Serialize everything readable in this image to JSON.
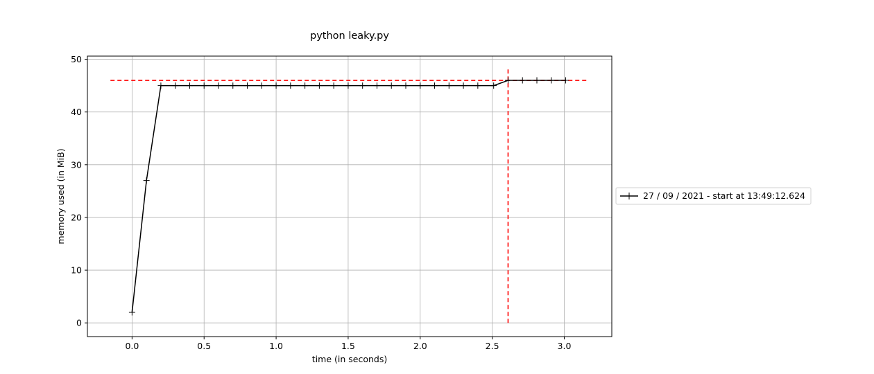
{
  "chart_data": {
    "type": "line",
    "title": "python leaky.py",
    "xlabel": "time (in seconds)",
    "ylabel": "memory used (in MiB)",
    "xlim": [
      -0.31,
      3.33
    ],
    "ylim": [
      -2.6,
      50.6
    ],
    "xticks": [
      0.0,
      0.5,
      1.0,
      1.5,
      2.0,
      2.5,
      3.0
    ],
    "xtick_labels": [
      "0.0",
      "0.5",
      "1.0",
      "1.5",
      "2.0",
      "2.5",
      "3.0"
    ],
    "yticks": [
      0,
      10,
      20,
      30,
      40,
      50
    ],
    "ytick_labels": [
      "0",
      "10",
      "20",
      "30",
      "40",
      "50"
    ],
    "grid": true,
    "legend_position": "outside-right",
    "series": [
      {
        "name": "27 / 09 / 2021 - start at 13:49:12.624",
        "color": "#000000",
        "marker": "+",
        "x": [
          0.0,
          0.1,
          0.2,
          0.3,
          0.4,
          0.5,
          0.6,
          0.7,
          0.8,
          0.9,
          1.0,
          1.1,
          1.2,
          1.3,
          1.4,
          1.5,
          1.6,
          1.7,
          1.8,
          1.9,
          2.0,
          2.1,
          2.2,
          2.3,
          2.4,
          2.51,
          2.61,
          2.71,
          2.81,
          2.91,
          3.01
        ],
        "y": [
          2.0,
          27.0,
          45.0,
          45.0,
          45.0,
          45.0,
          45.0,
          45.0,
          45.0,
          45.0,
          45.0,
          45.0,
          45.0,
          45.0,
          45.0,
          45.0,
          45.0,
          45.0,
          45.0,
          45.0,
          45.0,
          45.0,
          45.0,
          45.0,
          45.0,
          45.0,
          46.0,
          46.0,
          46.0,
          46.0,
          46.0
        ]
      }
    ],
    "reference_lines": [
      {
        "orientation": "horizontal",
        "y": 46.0,
        "x_from": -0.15,
        "x_to": 3.16,
        "color": "#ff0000",
        "style": "dashed"
      },
      {
        "orientation": "vertical",
        "x": 2.61,
        "y_from": 0.0,
        "y_to": 48.5,
        "color": "#ff0000",
        "style": "dashed"
      }
    ]
  }
}
